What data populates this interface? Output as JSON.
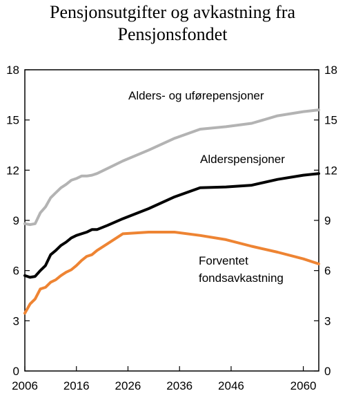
{
  "chart_data": {
    "type": "line",
    "title_lines": [
      "Pensjonsutgifter og avkastning fra",
      "Pensjonsfondet"
    ],
    "xlabel": "",
    "ylabel": "",
    "xlim": [
      2006,
      2063
    ],
    "ylim": [
      0,
      18
    ],
    "x_ticks": [
      2006,
      2016,
      2026,
      2036,
      2046,
      2060
    ],
    "y_ticks": [
      0,
      3,
      6,
      9,
      12,
      15,
      18
    ],
    "grid": false,
    "legend": "none",
    "series": [
      {
        "name": "Alders- og uførepensjoner",
        "color": "#b3b3b3",
        "label_lines": [
          "Alders- og uførepensjoner"
        ],
        "x": [
          2006,
          2007,
          2008,
          2009,
          2010,
          2011,
          2012,
          2013,
          2014,
          2015,
          2016,
          2017,
          2018,
          2019,
          2020,
          2022,
          2025,
          2030,
          2035,
          2040,
          2045,
          2050,
          2055,
          2060,
          2063
        ],
        "values": [
          8.8,
          8.75,
          8.8,
          9.45,
          9.8,
          10.35,
          10.65,
          10.95,
          11.15,
          11.4,
          11.5,
          11.65,
          11.65,
          11.7,
          11.8,
          12.1,
          12.55,
          13.2,
          13.9,
          14.45,
          14.6,
          14.8,
          15.25,
          15.5,
          15.6
        ]
      },
      {
        "name": "Alderspensjoner",
        "color": "#000000",
        "label_lines": [
          "Alderspensjoner"
        ],
        "x": [
          2006,
          2007,
          2008,
          2009,
          2010,
          2011,
          2012,
          2013,
          2014,
          2015,
          2016,
          2017,
          2018,
          2019,
          2020,
          2022,
          2025,
          2030,
          2035,
          2040,
          2045,
          2050,
          2055,
          2060,
          2063
        ],
        "values": [
          5.7,
          5.6,
          5.65,
          6.0,
          6.3,
          6.95,
          7.2,
          7.5,
          7.7,
          7.95,
          8.1,
          8.2,
          8.3,
          8.45,
          8.45,
          8.7,
          9.1,
          9.7,
          10.4,
          10.95,
          11.0,
          11.1,
          11.45,
          11.7,
          11.8
        ]
      },
      {
        "name": "Forventet fondsavkastning",
        "color": "#ee8433",
        "label_lines": [
          "Forventet",
          "fondsavkastning"
        ],
        "x": [
          2006,
          2007,
          2008,
          2009,
          2010,
          2011,
          2012,
          2013,
          2014,
          2015,
          2016,
          2017,
          2018,
          2019,
          2020,
          2022,
          2025,
          2030,
          2035,
          2040,
          2045,
          2050,
          2055,
          2060,
          2063
        ],
        "values": [
          3.45,
          4.0,
          4.3,
          4.9,
          5.0,
          5.3,
          5.45,
          5.7,
          5.9,
          6.05,
          6.3,
          6.6,
          6.85,
          6.95,
          7.2,
          7.6,
          8.2,
          8.3,
          8.3,
          8.1,
          7.85,
          7.45,
          7.1,
          6.7,
          6.4
        ]
      }
    ]
  }
}
